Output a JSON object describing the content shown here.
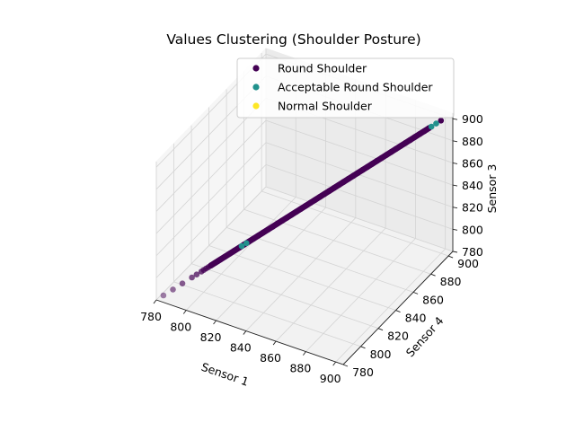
{
  "chart_data": {
    "type": "scatter",
    "projection": "3d",
    "title": "Values Clustering (Shoulder Posture)",
    "xlabel": "Sensor 1",
    "ylabel": "Sensor 4",
    "zlabel": "Sensor 3",
    "xlim": [
      780,
      905
    ],
    "ylim": [
      780,
      905
    ],
    "zlim": [
      780,
      905
    ],
    "xticks": [
      "780",
      "800",
      "820",
      "840",
      "860",
      "880",
      "900"
    ],
    "yticks": [
      "780",
      "800",
      "820",
      "840",
      "860",
      "880",
      "900"
    ],
    "zticks": [
      "780",
      "800",
      "820",
      "840",
      "860",
      "880",
      "900"
    ],
    "grid": true,
    "legend_position": "top-right",
    "colors": {
      "round": "#440154",
      "acceptable": "#21918c",
      "normal": "#fde725"
    },
    "series": [
      {
        "name": "Round Shoulder",
        "points": [
          [
            783,
            783,
            783
          ],
          [
            787,
            787,
            787
          ],
          [
            791,
            791,
            791
          ],
          [
            795,
            795,
            795
          ],
          [
            797,
            797,
            797
          ],
          [
            799,
            799,
            799
          ],
          [
            800,
            800,
            800
          ],
          [
            801,
            801,
            801
          ],
          [
            802,
            802,
            802
          ],
          [
            803,
            803,
            803
          ],
          [
            805,
            805,
            805
          ],
          [
            806,
            806,
            806
          ],
          [
            807,
            807,
            807
          ],
          [
            809,
            809,
            809
          ],
          [
            811,
            811,
            811
          ],
          [
            813,
            813,
            813
          ],
          [
            815,
            815,
            815
          ],
          [
            817,
            817,
            817
          ],
          [
            819,
            819,
            819
          ],
          [
            821,
            821,
            821
          ],
          [
            823,
            823,
            823
          ],
          [
            825,
            825,
            825
          ],
          [
            827,
            827,
            827
          ],
          [
            829,
            829,
            829
          ],
          [
            831,
            831,
            831
          ],
          [
            833,
            833,
            833
          ],
          [
            835,
            835,
            835
          ],
          [
            837,
            837,
            837
          ],
          [
            839,
            839,
            839
          ],
          [
            841,
            841,
            841
          ],
          [
            843,
            843,
            843
          ],
          [
            845,
            845,
            845
          ],
          [
            847,
            847,
            847
          ],
          [
            849,
            849,
            849
          ],
          [
            851,
            851,
            851
          ],
          [
            853,
            853,
            853
          ],
          [
            855,
            855,
            855
          ],
          [
            857,
            857,
            857
          ],
          [
            859,
            859,
            859
          ],
          [
            861,
            861,
            861
          ],
          [
            863,
            863,
            863
          ],
          [
            865,
            865,
            865
          ],
          [
            867,
            867,
            867
          ],
          [
            869,
            869,
            869
          ],
          [
            871,
            871,
            871
          ],
          [
            873,
            873,
            873
          ],
          [
            875,
            875,
            875
          ],
          [
            877,
            877,
            877
          ],
          [
            879,
            879,
            879
          ],
          [
            881,
            881,
            881
          ],
          [
            883,
            883,
            883
          ],
          [
            885,
            885,
            885
          ],
          [
            887,
            887,
            887
          ],
          [
            889,
            889,
            889
          ],
          [
            891,
            891,
            891
          ],
          [
            893,
            893,
            893
          ],
          [
            895,
            895,
            895
          ],
          [
            900,
            900,
            900
          ]
        ]
      },
      {
        "name": "Acceptable Round Shoulder",
        "points": [
          [
            816,
            816,
            816
          ],
          [
            818,
            818,
            818
          ],
          [
            898,
            898,
            898
          ],
          [
            896,
            896,
            896
          ]
        ]
      },
      {
        "name": "Normal Shoulder",
        "points": []
      }
    ]
  }
}
